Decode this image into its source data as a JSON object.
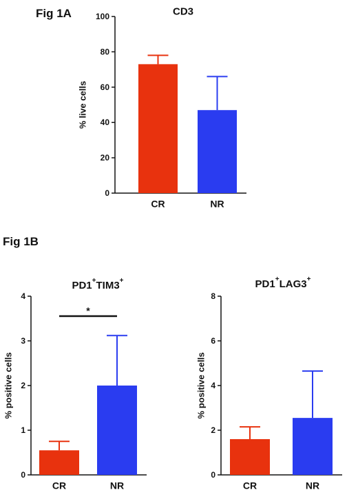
{
  "figure_labels": {
    "a": "Fig 1A",
    "b": "Fig 1B"
  },
  "chart_data": [
    {
      "type": "bar",
      "title": "CD3",
      "title_sup": "",
      "title_parts": [],
      "ylabel": "% live cells",
      "ylim": [
        0,
        100
      ],
      "yticks": [
        0,
        20,
        40,
        60,
        80,
        100
      ],
      "categories": [
        "CR",
        "NR"
      ],
      "values": [
        73,
        47
      ],
      "errors": [
        5,
        19
      ],
      "colors": [
        "#e8320e",
        "#2a3cf0"
      ],
      "significance": null
    },
    {
      "type": "bar",
      "title": "",
      "title_parts": [
        {
          "text": "PD1",
          "sup": "+"
        },
        {
          "text": "TIM3",
          "sup": "+"
        }
      ],
      "ylabel": "% positive cells",
      "ylim": [
        0,
        4
      ],
      "yticks": [
        0,
        1,
        2,
        3,
        4
      ],
      "categories": [
        "CR",
        "NR"
      ],
      "values": [
        0.55,
        2.0
      ],
      "errors": [
        0.2,
        1.12
      ],
      "colors": [
        "#e8320e",
        "#2a3cf0"
      ],
      "significance": {
        "label": "*",
        "between": [
          0,
          1
        ]
      }
    },
    {
      "type": "bar",
      "title": "",
      "title_parts": [
        {
          "text": "PD1",
          "sup": "+"
        },
        {
          "text": "LAG3",
          "sup": "+"
        }
      ],
      "ylabel": "% positive cells",
      "ylim": [
        0,
        8
      ],
      "yticks": [
        0,
        2,
        4,
        6,
        8
      ],
      "categories": [
        "CR",
        "NR"
      ],
      "values": [
        1.6,
        2.55
      ],
      "errors": [
        0.55,
        2.1
      ],
      "colors": [
        "#e8320e",
        "#2a3cf0"
      ],
      "significance": null
    }
  ]
}
